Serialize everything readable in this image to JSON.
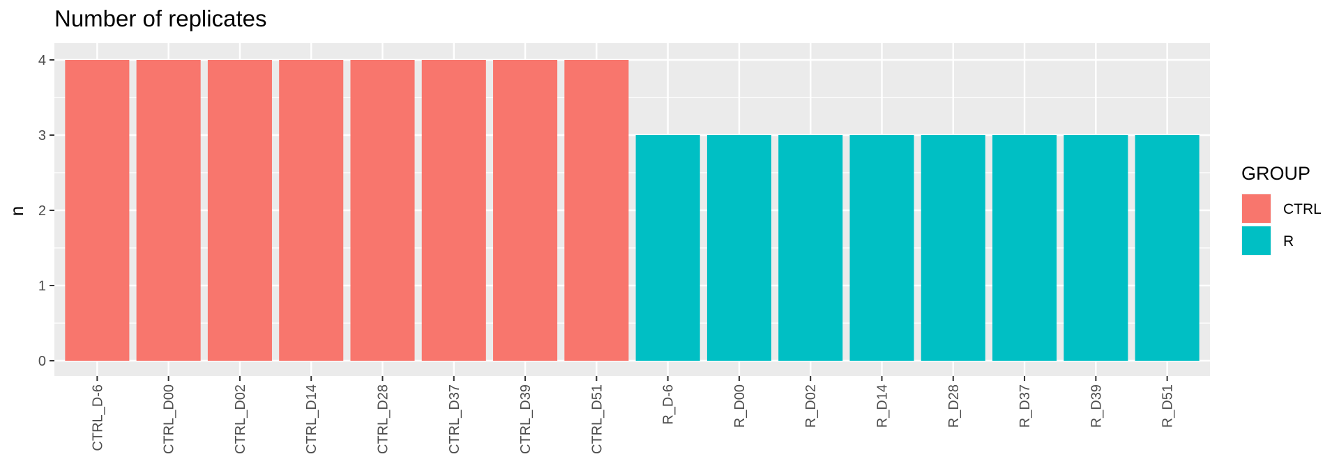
{
  "chart_data": {
    "type": "bar",
    "title": "Number of replicates",
    "xlabel": "",
    "ylabel": "n",
    "ylim": [
      0,
      4.2
    ],
    "yticks": [
      0,
      1,
      2,
      3,
      4
    ],
    "grid": true,
    "legend": {
      "title": "GROUP",
      "position": "right",
      "entries": [
        {
          "name": "CTRL",
          "color": "#F8766D"
        },
        {
          "name": "R",
          "color": "#00BFC4"
        }
      ]
    },
    "categories": [
      "CTRL_D-6",
      "CTRL_D00",
      "CTRL_D02",
      "CTRL_D14",
      "CTRL_D28",
      "CTRL_D37",
      "CTRL_D39",
      "CTRL_D51",
      "R_D-6",
      "R_D00",
      "R_D02",
      "R_D14",
      "R_D28",
      "R_D37",
      "R_D39",
      "R_D51"
    ],
    "values": [
      4,
      4,
      4,
      4,
      4,
      4,
      4,
      4,
      3,
      3,
      3,
      3,
      3,
      3,
      3,
      3
    ],
    "groups": [
      "CTRL",
      "CTRL",
      "CTRL",
      "CTRL",
      "CTRL",
      "CTRL",
      "CTRL",
      "CTRL",
      "R",
      "R",
      "R",
      "R",
      "R",
      "R",
      "R",
      "R"
    ]
  }
}
